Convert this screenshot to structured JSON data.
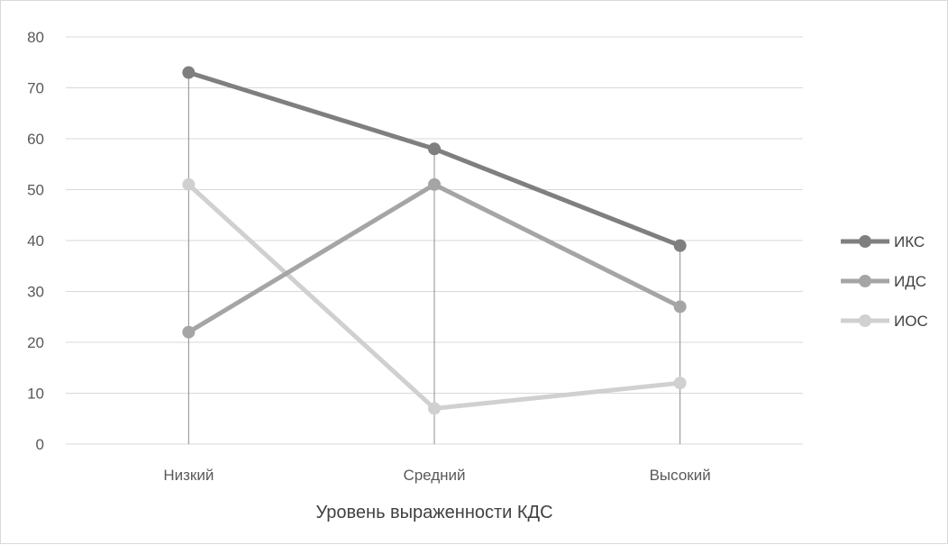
{
  "chart_data": {
    "type": "line",
    "title": "",
    "xlabel": "Уровень выраженности КДС",
    "ylabel": "",
    "categories": [
      "Низкий",
      "Средний",
      "Высокий"
    ],
    "ylim": [
      0,
      80
    ],
    "yticks": [
      0,
      10,
      20,
      30,
      40,
      50,
      60,
      70,
      80
    ],
    "grid": true,
    "drop_lines": true,
    "legend_position": "right",
    "series": [
      {
        "name": "ИКС",
        "values": [
          73,
          58,
          39
        ],
        "color": "#7f7f7f"
      },
      {
        "name": "ИДС",
        "values": [
          22,
          51,
          27
        ],
        "color": "#a5a5a5"
      },
      {
        "name": "ИОС",
        "values": [
          51,
          7,
          12
        ],
        "color": "#d0d0d0"
      }
    ]
  }
}
